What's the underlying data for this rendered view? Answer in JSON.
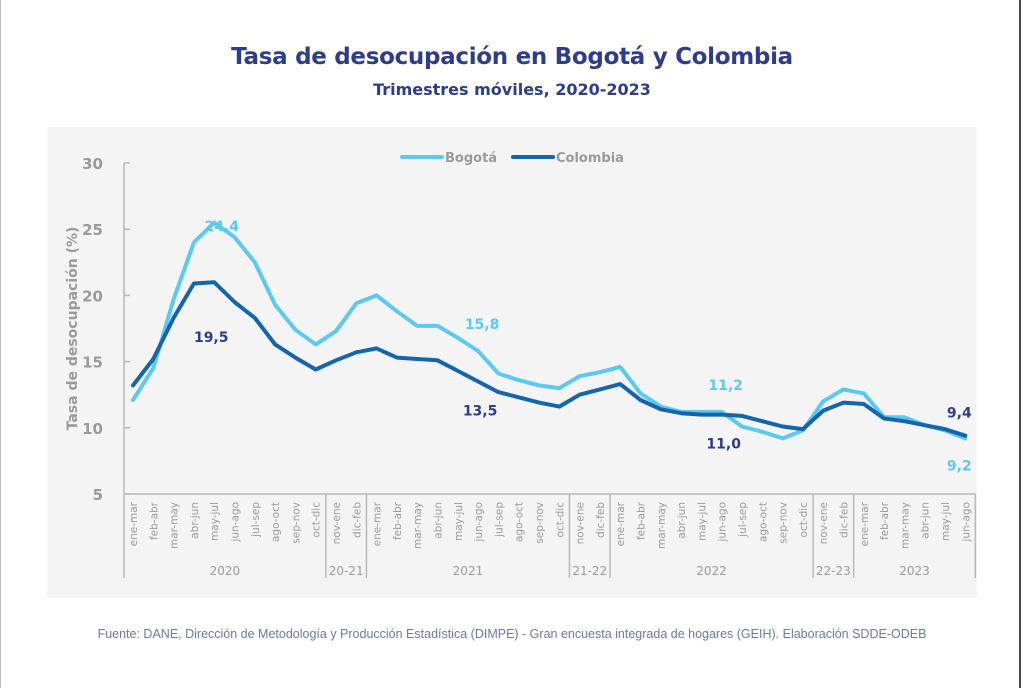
{
  "title": "Tasa de desocupación en Bogotá y Colombia",
  "subtitle": "Trimestres móviles, 2020-2023",
  "source": "Fuente: DANE, Dirección de Metodología y Producción Estadística (DIMPE) - Gran encuesta integrada de hogares (GEIH). Elaboración SDDE-ODEB",
  "colors": {
    "bogota": "#5cc9f0",
    "colombia": "#1565ad",
    "bogota_label": "#5cc9f0",
    "colombia_label": "#2e3d8a",
    "axis": "#b8b8b8",
    "tick_text": "#9a9a9a"
  },
  "chart_data": {
    "type": "line",
    "title": "Tasa de desocupación en Bogotá y Colombia",
    "subtitle": "Trimestres móviles, 2020-2023",
    "xlabel": "",
    "ylabel": "Tasa de desocupación (%)",
    "ylim": [
      5,
      30
    ],
    "yticks": [
      5,
      10,
      15,
      20,
      25,
      30
    ],
    "grid": false,
    "legend": "top-center",
    "categories": [
      "ene-mar",
      "feb-abr",
      "mar-may",
      "abr-jun",
      "may-jul",
      "jun-ago",
      "jul-sep",
      "ago-oct",
      "sep-nov",
      "oct-dic",
      "nov-ene",
      "dic-feb",
      "ene-mar",
      "feb-abr",
      "mar-may",
      "abr-jun",
      "may-jul",
      "jun-ago",
      "jul-sep",
      "ago-oct",
      "sep-nov",
      "oct-dic",
      "nov-ene",
      "dic-feb",
      "ene-mar",
      "feb-abr",
      "mar-may",
      "abr-jun",
      "may-jul",
      "jun-ago",
      "jul-sep",
      "ago-oct",
      "sep-nov",
      "oct-dic",
      "nov-ene",
      "dic-feb",
      "ene-mar",
      "feb-abr",
      "mar-may",
      "abr-jun",
      "may-jul",
      "jun-ago"
    ],
    "groups": [
      {
        "label": "2020",
        "start": 0,
        "count": 10
      },
      {
        "label": "20-21",
        "start": 10,
        "count": 2
      },
      {
        "label": "2021",
        "start": 12,
        "count": 10
      },
      {
        "label": "21-22",
        "start": 22,
        "count": 2
      },
      {
        "label": "2022",
        "start": 24,
        "count": 10
      },
      {
        "label": "22-23",
        "start": 34,
        "count": 2
      },
      {
        "label": "2023",
        "start": 36,
        "count": 6
      }
    ],
    "series": [
      {
        "name": "Bogotá",
        "key": "bogota",
        "values": [
          12.1,
          14.5,
          19.7,
          24.0,
          25.5,
          24.4,
          22.5,
          19.3,
          17.4,
          16.3,
          17.3,
          19.4,
          20.0,
          18.8,
          17.7,
          17.7,
          16.8,
          15.8,
          14.1,
          13.6,
          13.2,
          13.0,
          13.9,
          14.2,
          14.6,
          12.6,
          11.6,
          11.2,
          11.2,
          11.2,
          10.1,
          9.7,
          9.2,
          9.8,
          12.0,
          12.9,
          12.6,
          10.8,
          10.8,
          10.2,
          9.8,
          9.2
        ]
      },
      {
        "name": "Colombia",
        "key": "colombia",
        "values": [
          13.2,
          15.2,
          18.3,
          20.9,
          21.0,
          19.5,
          18.3,
          16.3,
          15.3,
          14.4,
          15.1,
          15.7,
          16.0,
          15.3,
          15.2,
          15.1,
          14.3,
          13.5,
          12.7,
          12.3,
          11.9,
          11.6,
          12.5,
          12.9,
          13.3,
          12.1,
          11.4,
          11.1,
          11.0,
          11.0,
          10.9,
          10.5,
          10.1,
          9.9,
          11.3,
          11.9,
          11.8,
          10.7,
          10.5,
          10.2,
          9.9,
          9.4
        ]
      }
    ],
    "annotations": [
      {
        "series": "bogota",
        "index": 5,
        "text": "24,4",
        "pos": "above-right"
      },
      {
        "series": "colombia",
        "index": 5,
        "text": "19,5",
        "pos": "below-left"
      },
      {
        "series": "bogota",
        "index": 17,
        "text": "15,8",
        "pos": "above"
      },
      {
        "series": "colombia",
        "index": 17,
        "text": "13,5",
        "pos": "below"
      },
      {
        "series": "bogota",
        "index": 29,
        "text": "11,2",
        "pos": "above"
      },
      {
        "series": "colombia",
        "index": 29,
        "text": "11,0",
        "pos": "below"
      },
      {
        "series": "colombia",
        "index": 41,
        "text": "9,4",
        "pos": "above"
      },
      {
        "series": "bogota",
        "index": 41,
        "text": "9,2",
        "pos": "below"
      }
    ]
  }
}
